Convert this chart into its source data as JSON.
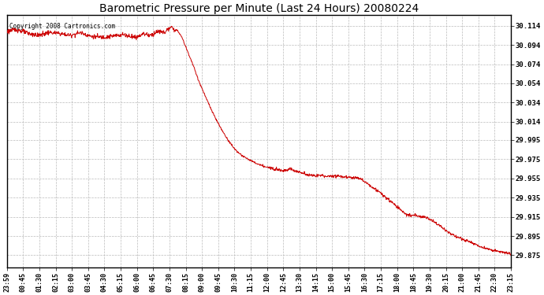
{
  "title": "Barometric Pressure per Minute (Last 24 Hours) 20080224",
  "copyright_text": "Copyright 2008 Cartronics.com",
  "line_color": "#cc0000",
  "background_color": "#ffffff",
  "plot_bg_color": "#ffffff",
  "grid_color": "#bbbbbb",
  "title_fontsize": 10,
  "yticks": [
    29.875,
    29.895,
    29.915,
    29.935,
    29.955,
    29.975,
    29.995,
    30.014,
    30.034,
    30.054,
    30.074,
    30.094,
    30.114
  ],
  "ylim": [
    29.862,
    30.125
  ],
  "xtick_labels": [
    "23:59",
    "00:45",
    "01:30",
    "02:15",
    "03:00",
    "03:45",
    "04:30",
    "05:15",
    "06:00",
    "06:45",
    "07:30",
    "08:15",
    "09:00",
    "09:45",
    "10:30",
    "11:15",
    "12:00",
    "12:45",
    "13:30",
    "14:15",
    "15:00",
    "15:45",
    "16:30",
    "17:15",
    "18:00",
    "18:45",
    "19:30",
    "20:15",
    "21:00",
    "21:45",
    "22:30",
    "23:15"
  ],
  "control_points": [
    [
      0,
      30.108
    ],
    [
      30,
      30.11
    ],
    [
      60,
      30.106
    ],
    [
      90,
      30.104
    ],
    [
      120,
      30.107
    ],
    [
      150,
      30.106
    ],
    [
      180,
      30.104
    ],
    [
      210,
      30.107
    ],
    [
      240,
      30.103
    ],
    [
      270,
      30.102
    ],
    [
      300,
      30.103
    ],
    [
      330,
      30.105
    ],
    [
      355,
      30.103
    ],
    [
      370,
      30.102
    ],
    [
      390,
      30.106
    ],
    [
      410,
      30.104
    ],
    [
      430,
      30.108
    ],
    [
      450,
      30.107
    ],
    [
      460,
      30.11
    ],
    [
      470,
      30.112
    ],
    [
      480,
      30.11
    ],
    [
      490,
      30.108
    ],
    [
      500,
      30.102
    ],
    [
      510,
      30.093
    ],
    [
      530,
      30.075
    ],
    [
      550,
      30.055
    ],
    [
      570,
      30.038
    ],
    [
      590,
      30.022
    ],
    [
      610,
      30.008
    ],
    [
      630,
      29.996
    ],
    [
      650,
      29.986
    ],
    [
      670,
      29.979
    ],
    [
      690,
      29.975
    ],
    [
      710,
      29.971
    ],
    [
      730,
      29.968
    ],
    [
      750,
      29.966
    ],
    [
      770,
      29.965
    ],
    [
      790,
      29.963
    ],
    [
      810,
      29.965
    ],
    [
      830,
      29.962
    ],
    [
      850,
      29.96
    ],
    [
      870,
      29.958
    ],
    [
      880,
      29.958
    ],
    [
      900,
      29.958
    ],
    [
      920,
      29.957
    ],
    [
      940,
      29.958
    ],
    [
      960,
      29.957
    ],
    [
      980,
      29.956
    ],
    [
      1000,
      29.956
    ],
    [
      1010,
      29.955
    ],
    [
      1020,
      29.952
    ],
    [
      1040,
      29.947
    ],
    [
      1060,
      29.942
    ],
    [
      1080,
      29.936
    ],
    [
      1100,
      29.93
    ],
    [
      1120,
      29.924
    ],
    [
      1135,
      29.919
    ],
    [
      1145,
      29.917
    ],
    [
      1155,
      29.916
    ],
    [
      1165,
      29.917
    ],
    [
      1175,
      29.916
    ],
    [
      1185,
      29.915
    ],
    [
      1200,
      29.914
    ],
    [
      1220,
      29.91
    ],
    [
      1240,
      29.905
    ],
    [
      1260,
      29.899
    ],
    [
      1280,
      29.895
    ],
    [
      1300,
      29.892
    ],
    [
      1320,
      29.889
    ],
    [
      1340,
      29.886
    ],
    [
      1360,
      29.883
    ],
    [
      1380,
      29.881
    ],
    [
      1400,
      29.879
    ],
    [
      1420,
      29.878
    ],
    [
      1440,
      29.876
    ]
  ]
}
